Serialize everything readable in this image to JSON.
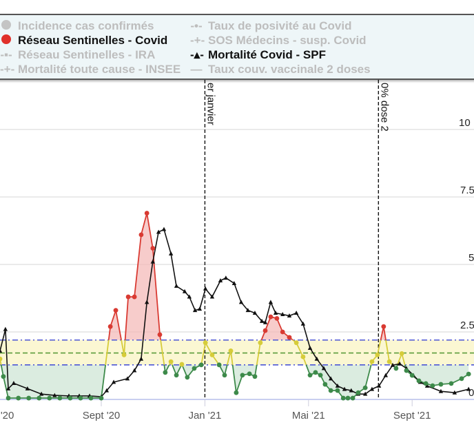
{
  "legend": {
    "items": [
      {
        "label": "Incidence cas confirmés",
        "active": false,
        "marker": "dot-icon",
        "color": "#c4c4c4"
      },
      {
        "label": "Réseau Sentinelles - Covid",
        "active": true,
        "marker": "dot-icon",
        "color": "#e0302a"
      },
      {
        "label": "Réseau Sentinelles - IRA",
        "active": false,
        "marker": "line-square-icon",
        "color": "#bdbdbd"
      },
      {
        "label": "Mortalité toute cause - INSEE",
        "active": false,
        "marker": "line-plus-icon",
        "color": "#bdbdbd"
      },
      {
        "label": "Taux de posivité au Covid",
        "active": false,
        "marker": "line-dot-icon",
        "color": "#bdbdbd"
      },
      {
        "label": "SOS Médecins - susp. Covid",
        "active": false,
        "marker": "line-plus-icon",
        "color": "#bdbdbd"
      },
      {
        "label": "Mortalité Covid - SPF",
        "active": true,
        "marker": "line-triangle-icon",
        "color": "#111111"
      },
      {
        "label": "Taux couv. vaccinale 2 doses",
        "active": false,
        "marker": "line-icon",
        "color": "#bdbdbd"
      }
    ]
  },
  "chart_data": {
    "type": "line",
    "x_unit": "months since Jan 2020",
    "x_ticks": [
      {
        "x": 4,
        "label": "'20"
      },
      {
        "x": 8,
        "label": "Sept '20"
      },
      {
        "x": 12,
        "label": "Jan '21"
      },
      {
        "x": 16,
        "label": "Mai '21"
      },
      {
        "x": 20,
        "label": "Sept '21"
      }
    ],
    "y_ticks": [
      {
        "y": 0,
        "label": "0"
      },
      {
        "y": 2.5,
        "label": "2.5"
      },
      {
        "y": 5,
        "label": "5"
      },
      {
        "y": 7.5,
        "label": "7.5"
      },
      {
        "y": 10,
        "label": "10"
      }
    ],
    "ylim": [
      0,
      11
    ],
    "xlim": [
      4.1,
      22.2
    ],
    "grid": true,
    "thresholds": {
      "upper": 2.2,
      "middle": 1.72,
      "lower": 1.28
    },
    "colors": {
      "high": "#d93a32",
      "mid": "#d6cc3a",
      "low": "#3d8a4a",
      "mortality": "#111111",
      "upper_line": "#4b55d6",
      "middle_line": "#5a9a3a",
      "band": "#fbf7d2"
    },
    "annotations": [
      {
        "x": 12,
        "label": "er janvier"
      },
      {
        "x": 18.7,
        "label": "0% dose 2"
      }
    ],
    "series": [
      {
        "name": "Réseau Sentinelles - Covid",
        "points": [
          [
            4.09,
            1.5
          ],
          [
            4.22,
            0.85
          ],
          [
            4.41,
            0.05
          ],
          [
            4.8,
            0.05
          ],
          [
            5.2,
            0.05
          ],
          [
            5.6,
            0.05
          ],
          [
            6.0,
            0.05
          ],
          [
            6.4,
            0.05
          ],
          [
            6.8,
            0.05
          ],
          [
            7.2,
            0.05
          ],
          [
            7.6,
            0.05
          ],
          [
            8.0,
            0.05
          ],
          [
            8.35,
            2.7
          ],
          [
            8.56,
            3.3
          ],
          [
            8.88,
            1.65
          ],
          [
            9.04,
            3.8
          ],
          [
            9.28,
            3.8
          ],
          [
            9.54,
            6.1
          ],
          [
            9.76,
            6.9
          ],
          [
            9.99,
            5.6
          ],
          [
            10.26,
            2.4
          ],
          [
            10.47,
            1.0
          ],
          [
            10.69,
            1.4
          ],
          [
            10.9,
            0.9
          ],
          [
            11.11,
            1.3
          ],
          [
            11.32,
            0.82
          ],
          [
            11.59,
            1.15
          ],
          [
            11.86,
            1.28
          ],
          [
            12.02,
            2.1
          ],
          [
            12.28,
            1.65
          ],
          [
            12.55,
            1.28
          ],
          [
            12.76,
            0.9
          ],
          [
            13.0,
            1.8
          ],
          [
            13.21,
            0.25
          ],
          [
            13.45,
            0.9
          ],
          [
            13.72,
            0.95
          ],
          [
            13.93,
            0.85
          ],
          [
            14.14,
            2.1
          ],
          [
            14.33,
            2.55
          ],
          [
            14.54,
            3.06
          ],
          [
            14.78,
            3.0
          ],
          [
            15.0,
            2.5
          ],
          [
            15.26,
            2.3
          ],
          [
            15.53,
            2.1
          ],
          [
            15.79,
            1.58
          ],
          [
            16.06,
            0.9
          ],
          [
            16.27,
            1.0
          ],
          [
            16.46,
            0.9
          ],
          [
            16.64,
            0.56
          ],
          [
            16.86,
            0.33
          ],
          [
            17.12,
            0.33
          ],
          [
            17.34,
            0.05
          ],
          [
            17.52,
            0.05
          ],
          [
            17.71,
            0.05
          ],
          [
            17.92,
            0.25
          ],
          [
            18.19,
            0.43
          ],
          [
            18.45,
            1.4
          ],
          [
            18.66,
            1.65
          ],
          [
            18.9,
            2.7
          ],
          [
            19.12,
            1.4
          ],
          [
            19.38,
            1.15
          ],
          [
            19.6,
            1.7
          ],
          [
            19.78,
            1.07
          ],
          [
            20.0,
            0.89
          ],
          [
            20.26,
            0.69
          ],
          [
            20.53,
            0.59
          ],
          [
            20.79,
            0.51
          ],
          [
            21.11,
            0.56
          ],
          [
            21.51,
            0.59
          ],
          [
            21.91,
            0.77
          ],
          [
            22.18,
            0.94
          ]
        ]
      },
      {
        "name": "Mortalité Covid - SPF",
        "points": [
          [
            4.09,
            1.8
          ],
          [
            4.3,
            2.6
          ],
          [
            4.41,
            0.4
          ],
          [
            4.62,
            0.6
          ],
          [
            5.15,
            0.4
          ],
          [
            5.69,
            0.2
          ],
          [
            6.2,
            0.15
          ],
          [
            6.75,
            0.13
          ],
          [
            7.15,
            0.13
          ],
          [
            7.55,
            0.13
          ],
          [
            8.0,
            0.1
          ],
          [
            8.21,
            0.33
          ],
          [
            8.48,
            0.64
          ],
          [
            9.01,
            0.77
          ],
          [
            9.28,
            1.07
          ],
          [
            9.54,
            1.5
          ],
          [
            9.76,
            3.6
          ],
          [
            9.99,
            5.1
          ],
          [
            10.21,
            6.2
          ],
          [
            10.42,
            6.3
          ],
          [
            10.69,
            5.4
          ],
          [
            10.9,
            4.2
          ],
          [
            11.22,
            4.0
          ],
          [
            11.4,
            3.8
          ],
          [
            11.62,
            3.3
          ],
          [
            11.8,
            3.35
          ],
          [
            12.02,
            4.1
          ],
          [
            12.28,
            3.8
          ],
          [
            12.6,
            4.4
          ],
          [
            12.81,
            4.5
          ],
          [
            13.13,
            4.3
          ],
          [
            13.4,
            3.6
          ],
          [
            13.66,
            3.3
          ],
          [
            13.93,
            3.2
          ],
          [
            14.2,
            2.9
          ],
          [
            14.33,
            2.85
          ],
          [
            14.54,
            3.6
          ],
          [
            14.73,
            3.2
          ],
          [
            15.0,
            3.15
          ],
          [
            15.26,
            3.1
          ],
          [
            15.53,
            3.2
          ],
          [
            15.79,
            2.8
          ],
          [
            16.06,
            1.9
          ],
          [
            16.32,
            1.5
          ],
          [
            16.59,
            1.15
          ],
          [
            16.86,
            0.77
          ],
          [
            17.12,
            0.5
          ],
          [
            17.39,
            0.38
          ],
          [
            17.65,
            0.33
          ],
          [
            17.92,
            0.2
          ],
          [
            18.19,
            0.2
          ],
          [
            18.45,
            0.38
          ],
          [
            18.72,
            0.5
          ],
          [
            18.98,
            0.89
          ],
          [
            19.25,
            1.27
          ],
          [
            19.52,
            1.32
          ],
          [
            19.78,
            1.15
          ],
          [
            20.05,
            0.89
          ],
          [
            20.31,
            0.64
          ],
          [
            20.58,
            0.5
          ],
          [
            21.11,
            0.3
          ],
          [
            21.64,
            0.25
          ],
          [
            22.18,
            0.38
          ]
        ]
      }
    ]
  }
}
